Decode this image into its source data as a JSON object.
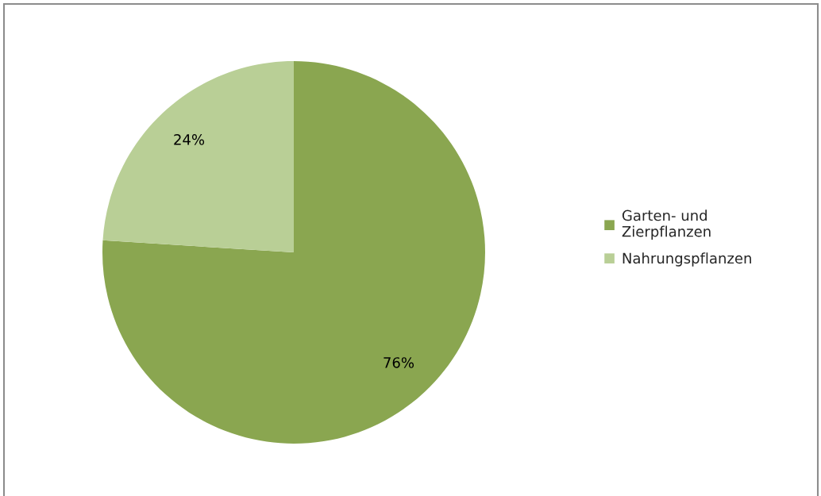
{
  "chart_data": {
    "type": "pie",
    "categories": [
      "Garten- und\nZierpflanzen",
      "Nahrungspflanzen"
    ],
    "values": [
      76,
      24
    ],
    "colors": [
      "#8aa650",
      "#b9cf96"
    ],
    "value_labels": [
      "76%",
      "24%"
    ],
    "legend": "right"
  }
}
